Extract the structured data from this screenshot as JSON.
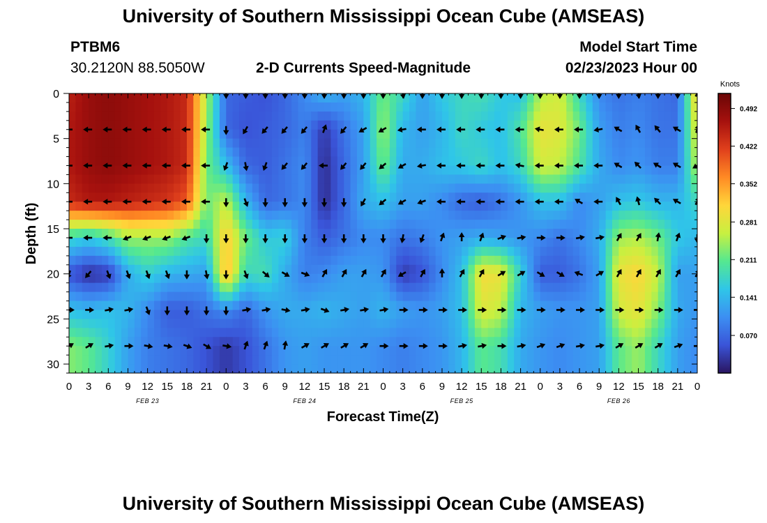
{
  "header": {
    "title": "University of Southern Mississippi Ocean Cube (AMSEAS)",
    "station_id": "PTBM6",
    "station_coords": "30.2120N  88.5050W",
    "chart_title": "2-D Currents Speed-Magnitude",
    "model_start_label": "Model Start Time",
    "model_start_value": "02/23/2023 Hour 00"
  },
  "footer": {
    "repeated_title": "University of Southern Mississippi Ocean Cube (AMSEAS)"
  },
  "chart_data": {
    "type": "heatmap",
    "title": "2-D Currents Speed-Magnitude",
    "xlabel": "Forecast Time(Z)",
    "ylabel": "Depth (ft)",
    "x_range_hours": [
      0,
      96
    ],
    "y_range_ft": [
      0,
      31
    ],
    "x_ticks_hours": [
      0,
      3,
      6,
      9,
      12,
      15,
      18,
      21,
      24,
      27,
      30,
      33,
      36,
      39,
      42,
      45,
      48,
      51,
      54,
      57,
      60,
      63,
      66,
      69,
      72,
      75,
      78,
      81,
      84,
      87,
      90,
      93,
      96
    ],
    "x_tick_labels": [
      "0",
      "3",
      "6",
      "9",
      "12",
      "15",
      "18",
      "21",
      "0",
      "3",
      "6",
      "9",
      "12",
      "15",
      "18",
      "21",
      "0",
      "3",
      "6",
      "9",
      "12",
      "15",
      "18",
      "21",
      "0",
      "3",
      "6",
      "9",
      "12",
      "15",
      "18",
      "21",
      "0"
    ],
    "date_labels": [
      {
        "text": "FEB 23",
        "hour": 12
      },
      {
        "text": "FEB 24",
        "hour": 36
      },
      {
        "text": "FEB 25",
        "hour": 60
      },
      {
        "text": "FEB 26",
        "hour": 84
      }
    ],
    "y_ticks": [
      0,
      5,
      10,
      15,
      20,
      25,
      30
    ],
    "colorbar": {
      "label": "Knots",
      "min": 0,
      "max": 0.52,
      "ticks": [
        "0.492",
        "0.422",
        "0.352",
        "0.281",
        "0.211",
        "0.141",
        "0.070"
      ],
      "tick_values": [
        0.492,
        0.422,
        0.352,
        0.281,
        0.211,
        0.141,
        0.07
      ],
      "colors": [
        "#2a1560",
        "#3a54d8",
        "#3c8ff2",
        "#2fc6e8",
        "#55e890",
        "#c8f040",
        "#ffd63a",
        "#ff8a24",
        "#e0401c",
        "#a6110e",
        "#6a0606"
      ]
    },
    "time_columns_hours": [
      0,
      3,
      6,
      9,
      12,
      15,
      18,
      21,
      24,
      27,
      30,
      33,
      36,
      39,
      42,
      45,
      48,
      51,
      54,
      57,
      60,
      63,
      66,
      69,
      72,
      75,
      78,
      81,
      84,
      87,
      90,
      93,
      96
    ],
    "depth_rows_ft": [
      0,
      4,
      8,
      12,
      16,
      20,
      24,
      28
    ],
    "speed_knots": [
      [
        0.45,
        0.48,
        0.49,
        0.48,
        0.47,
        0.46,
        0.44,
        0.25,
        0.07,
        0.06,
        0.05,
        0.07,
        0.1,
        0.14,
        0.12,
        0.14,
        0.22,
        0.18,
        0.12,
        0.16,
        0.18,
        0.19,
        0.16,
        0.15,
        0.25,
        0.27,
        0.18,
        0.1,
        0.08,
        0.09,
        0.08,
        0.07,
        0.32
      ],
      [
        0.46,
        0.48,
        0.49,
        0.48,
        0.47,
        0.46,
        0.44,
        0.24,
        0.07,
        0.05,
        0.06,
        0.07,
        0.09,
        0.03,
        0.08,
        0.12,
        0.24,
        0.14,
        0.12,
        0.14,
        0.18,
        0.16,
        0.15,
        0.2,
        0.29,
        0.28,
        0.22,
        0.12,
        0.09,
        0.1,
        0.08,
        0.08,
        0.29
      ],
      [
        0.46,
        0.48,
        0.49,
        0.48,
        0.47,
        0.46,
        0.44,
        0.22,
        0.15,
        0.07,
        0.06,
        0.08,
        0.1,
        0.02,
        0.07,
        0.12,
        0.22,
        0.13,
        0.13,
        0.15,
        0.16,
        0.18,
        0.15,
        0.18,
        0.27,
        0.26,
        0.2,
        0.13,
        0.1,
        0.11,
        0.09,
        0.09,
        0.26
      ],
      [
        0.44,
        0.46,
        0.46,
        0.45,
        0.44,
        0.43,
        0.4,
        0.22,
        0.26,
        0.14,
        0.07,
        0.08,
        0.1,
        0.02,
        0.07,
        0.13,
        0.15,
        0.12,
        0.12,
        0.1,
        0.07,
        0.06,
        0.08,
        0.11,
        0.15,
        0.15,
        0.1,
        0.12,
        0.15,
        0.16,
        0.14,
        0.14,
        0.18
      ],
      [
        0.18,
        0.16,
        0.19,
        0.24,
        0.24,
        0.24,
        0.2,
        0.18,
        0.32,
        0.22,
        0.16,
        0.17,
        0.09,
        0.06,
        0.08,
        0.1,
        0.1,
        0.08,
        0.09,
        0.11,
        0.12,
        0.13,
        0.12,
        0.11,
        0.1,
        0.08,
        0.1,
        0.13,
        0.24,
        0.25,
        0.22,
        0.16,
        0.14
      ],
      [
        0.05,
        0.02,
        0.03,
        0.13,
        0.17,
        0.14,
        0.13,
        0.12,
        0.34,
        0.18,
        0.19,
        0.13,
        0.09,
        0.1,
        0.12,
        0.12,
        0.11,
        0.03,
        0.05,
        0.1,
        0.15,
        0.3,
        0.29,
        0.17,
        0.06,
        0.06,
        0.08,
        0.12,
        0.29,
        0.31,
        0.26,
        0.12,
        0.12
      ],
      [
        0.15,
        0.14,
        0.15,
        0.14,
        0.1,
        0.06,
        0.06,
        0.08,
        0.1,
        0.07,
        0.11,
        0.13,
        0.13,
        0.14,
        0.13,
        0.12,
        0.14,
        0.12,
        0.11,
        0.12,
        0.15,
        0.28,
        0.26,
        0.14,
        0.12,
        0.11,
        0.11,
        0.12,
        0.27,
        0.29,
        0.23,
        0.13,
        0.11
      ],
      [
        0.23,
        0.21,
        0.17,
        0.12,
        0.09,
        0.08,
        0.07,
        0.05,
        0.03,
        0.05,
        0.08,
        0.11,
        0.12,
        0.11,
        0.11,
        0.11,
        0.1,
        0.09,
        0.1,
        0.11,
        0.14,
        0.21,
        0.19,
        0.13,
        0.11,
        0.1,
        0.11,
        0.12,
        0.21,
        0.24,
        0.18,
        0.12,
        0.1
      ]
    ],
    "direction_deg": [
      [
        null,
        null,
        null,
        null,
        null,
        null,
        null,
        null,
        180,
        180,
        180,
        180,
        180,
        180,
        180,
        180,
        180,
        170,
        180,
        180,
        180,
        180,
        180,
        180,
        180,
        180,
        180,
        180,
        180,
        170,
        180,
        180,
        30
      ],
      [
        270,
        270,
        270,
        270,
        270,
        270,
        270,
        270,
        180,
        210,
        220,
        220,
        220,
        20,
        220,
        240,
        240,
        260,
        270,
        270,
        270,
        270,
        270,
        270,
        280,
        270,
        270,
        260,
        300,
        330,
        320,
        300,
        20
      ],
      [
        270,
        270,
        270,
        270,
        270,
        270,
        270,
        270,
        200,
        170,
        200,
        220,
        220,
        270,
        220,
        220,
        230,
        240,
        260,
        270,
        270,
        270,
        270,
        280,
        270,
        270,
        270,
        270,
        300,
        315,
        300,
        300,
        240
      ],
      [
        270,
        270,
        270,
        270,
        270,
        270,
        270,
        270,
        180,
        160,
        180,
        180,
        180,
        180,
        180,
        210,
        230,
        240,
        250,
        270,
        270,
        270,
        270,
        270,
        270,
        270,
        300,
        270,
        330,
        345,
        315,
        300,
        30
      ],
      [
        270,
        270,
        270,
        250,
        250,
        250,
        250,
        180,
        180,
        180,
        180,
        180,
        180,
        180,
        180,
        180,
        180,
        190,
        200,
        20,
        0,
        20,
        70,
        80,
        90,
        90,
        80,
        80,
        30,
        30,
        10,
        20,
        180
      ],
      [
        200,
        220,
        160,
        160,
        160,
        160,
        180,
        170,
        180,
        160,
        130,
        120,
        110,
        30,
        30,
        30,
        30,
        240,
        30,
        0,
        30,
        30,
        60,
        60,
        120,
        120,
        290,
        60,
        30,
        30,
        30,
        30,
        30
      ],
      [
        90,
        90,
        80,
        80,
        160,
        180,
        180,
        180,
        180,
        80,
        80,
        100,
        80,
        110,
        80,
        80,
        80,
        90,
        90,
        90,
        90,
        90,
        90,
        90,
        90,
        90,
        90,
        90,
        90,
        90,
        90,
        90,
        90
      ],
      [
        60,
        60,
        80,
        90,
        100,
        100,
        110,
        120,
        100,
        20,
        20,
        10,
        60,
        60,
        60,
        60,
        90,
        90,
        90,
        90,
        80,
        80,
        90,
        80,
        70,
        70,
        80,
        80,
        60,
        60,
        60,
        70,
        90
      ]
    ]
  }
}
